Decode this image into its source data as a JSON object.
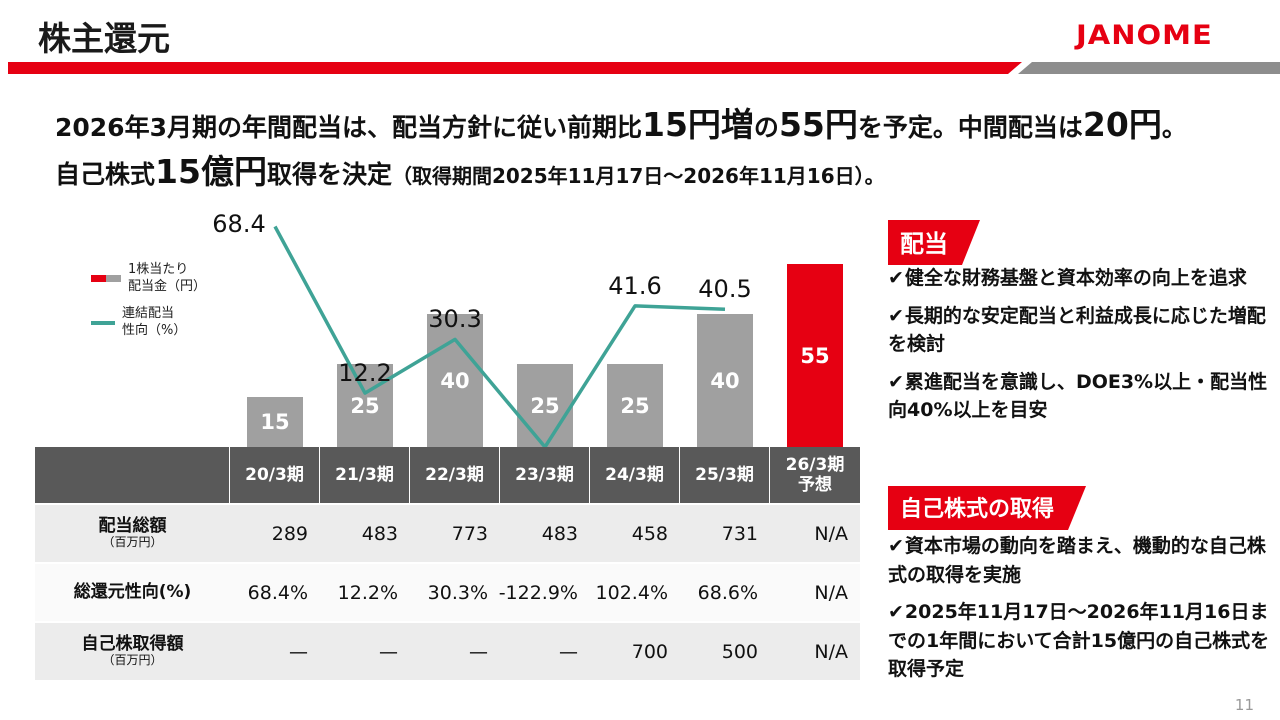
{
  "meta": {
    "accent": "#e60012",
    "teal": "#3fa396",
    "bar_gray": "#a0a0a0",
    "header_gray": "#595959"
  },
  "header": {
    "title": "株主還元",
    "logo": "JANOME"
  },
  "lead": {
    "line1": [
      {
        "t": "2026年3月期の年間配当は、配当方針に従い前期比",
        "s": "n"
      },
      {
        "t": "15円増",
        "s": "em"
      },
      {
        "t": "の",
        "s": "n"
      },
      {
        "t": "55円",
        "s": "em"
      },
      {
        "t": "を予定。中間配当は",
        "s": "n"
      },
      {
        "t": "20円",
        "s": "em"
      },
      {
        "t": "。",
        "s": "n"
      }
    ],
    "line2": [
      {
        "t": "自己株式",
        "s": "n"
      },
      {
        "t": "15億円",
        "s": "em"
      },
      {
        "t": "取得を決定",
        "s": "n"
      },
      {
        "t": "（取得期間2025年11月17日～2026年11月16日）。",
        "s": "small"
      }
    ]
  },
  "chart_data": {
    "type": "bar",
    "categories": [
      "20/3期",
      "21/3期",
      "22/3期",
      "23/3期",
      "24/3期",
      "25/3期",
      "26/3期予想"
    ],
    "series": [
      {
        "name": "1株当たり配当金(円)",
        "type": "bar",
        "values": [
          15,
          25,
          40,
          25,
          25,
          40,
          55
        ],
        "colors": [
          "gray",
          "gray",
          "gray",
          "gray",
          "gray",
          "gray",
          "red"
        ]
      },
      {
        "name": "連結配当性向(%)",
        "type": "line",
        "values": [
          68.4,
          12.2,
          30.3,
          null,
          41.6,
          40.5,
          null
        ],
        "labels": [
          "68.4",
          "12.2",
          "30.3",
          "",
          "41.6",
          "40.5",
          ""
        ]
      }
    ],
    "legend": [
      {
        "label": "1株当たり\n配当金（円）",
        "swatch": "bar"
      },
      {
        "label": "連結配当\n性向（%）",
        "swatch": "line"
      }
    ],
    "ylim_ratio": [
      -6,
      78
    ],
    "grid": false,
    "legend_position": "upper-left"
  },
  "table": {
    "col_headers": [
      "20/3期",
      "21/3期",
      "22/3期",
      "23/3期",
      "24/3期",
      "25/3期",
      "26/3期\n予想"
    ],
    "rows": [
      {
        "label": "配当総額",
        "sublabel": "（百万円）",
        "values": [
          "289",
          "483",
          "773",
          "483",
          "458",
          "731",
          "N/A"
        ]
      },
      {
        "label": "総還元性向(%)",
        "sublabel": "",
        "values": [
          "68.4%",
          "12.2%",
          "30.3%",
          "-122.9%",
          "102.4%",
          "68.6%",
          "N/A"
        ]
      },
      {
        "label": "自己株取得額",
        "sublabel": "（百万円）",
        "values": [
          "—",
          "—",
          "—",
          "—",
          "700",
          "500",
          "N/A"
        ]
      }
    ]
  },
  "dividend_panel": {
    "badge": "配当",
    "bullets": [
      [
        {
          "t": "健全な財務基盤と資本効率の向上を追求",
          "s": "n"
        }
      ],
      [
        {
          "t": "長期的な安定配当と利益成長に応じた増配を検討",
          "s": "n"
        }
      ],
      [
        {
          "t": "累進配当を意識し、",
          "s": "n"
        },
        {
          "t": "DOE3%以上・配当性向40%以上を目安",
          "s": "b"
        }
      ]
    ]
  },
  "buyback_panel": {
    "badge": "自己株式の取得",
    "bullets": [
      [
        {
          "t": "資本市場の動向を踏まえ、機動的な自己株式の取得を実施",
          "s": "n"
        }
      ],
      [
        {
          "t": "2025年11月17日～2026年11月16日までの1年間において合計",
          "s": "n"
        },
        {
          "t": "15億円",
          "s": "b"
        },
        {
          "t": "の自己株式を取得予定",
          "s": "n"
        }
      ]
    ]
  },
  "footer": {
    "page_number": "11"
  }
}
